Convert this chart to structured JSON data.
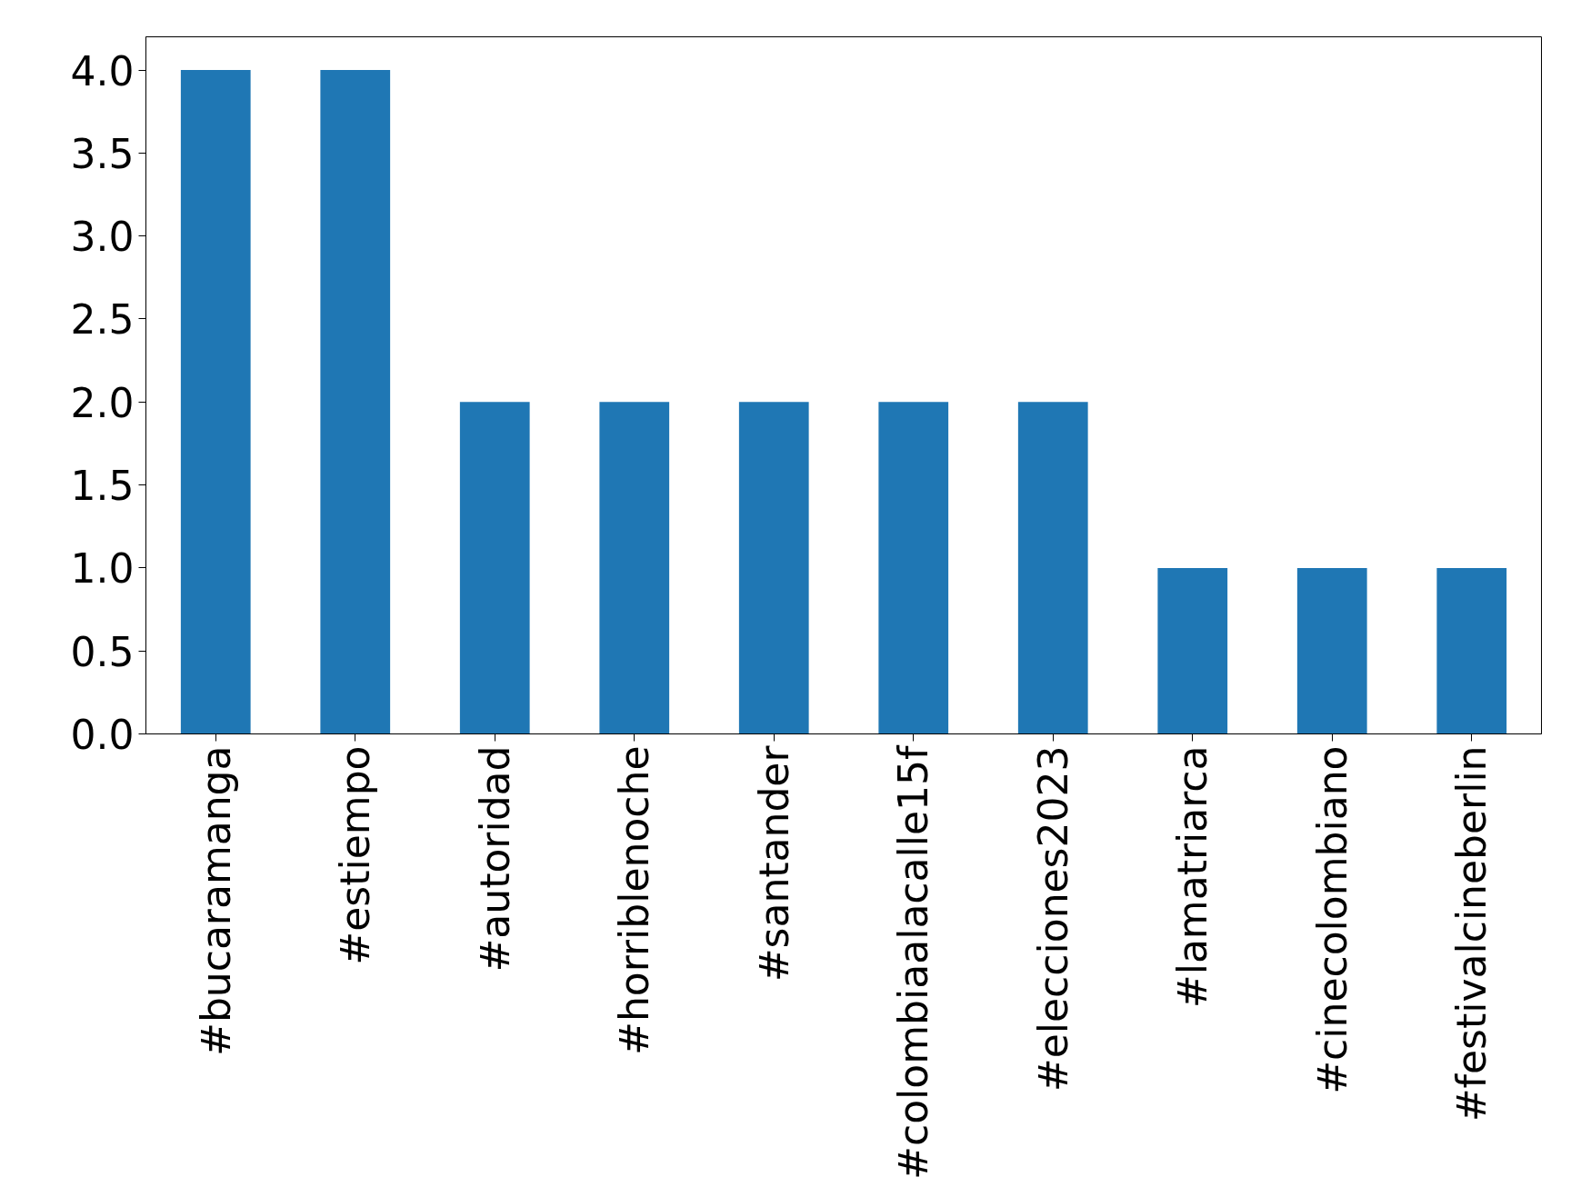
{
  "chart_data": {
    "type": "bar",
    "categories": [
      "#bucaramanga",
      "#estiempo",
      "#autoridad",
      "#horriblenoche",
      "#santander",
      "#colombiaalacalle15f",
      "#elecciones2023",
      "#lamatriarca",
      "#cinecolombiano",
      "#festivalcineberlin"
    ],
    "values": [
      4,
      4,
      2,
      2,
      2,
      2,
      2,
      1,
      1,
      1
    ],
    "color": "#1f77b4",
    "ylim": [
      0,
      4.2
    ],
    "yticks": [
      {
        "value": 0,
        "label": "0.0"
      },
      {
        "value": 0.5,
        "label": "0.5"
      },
      {
        "value": 1,
        "label": "1.0"
      },
      {
        "value": 1.5,
        "label": "1.5"
      },
      {
        "value": 2,
        "label": "2.0"
      },
      {
        "value": 2.5,
        "label": "2.5"
      },
      {
        "value": 3,
        "label": "3.0"
      },
      {
        "value": 3.5,
        "label": "3.5"
      },
      {
        "value": 4,
        "label": "4.0"
      }
    ],
    "grid": false
  }
}
